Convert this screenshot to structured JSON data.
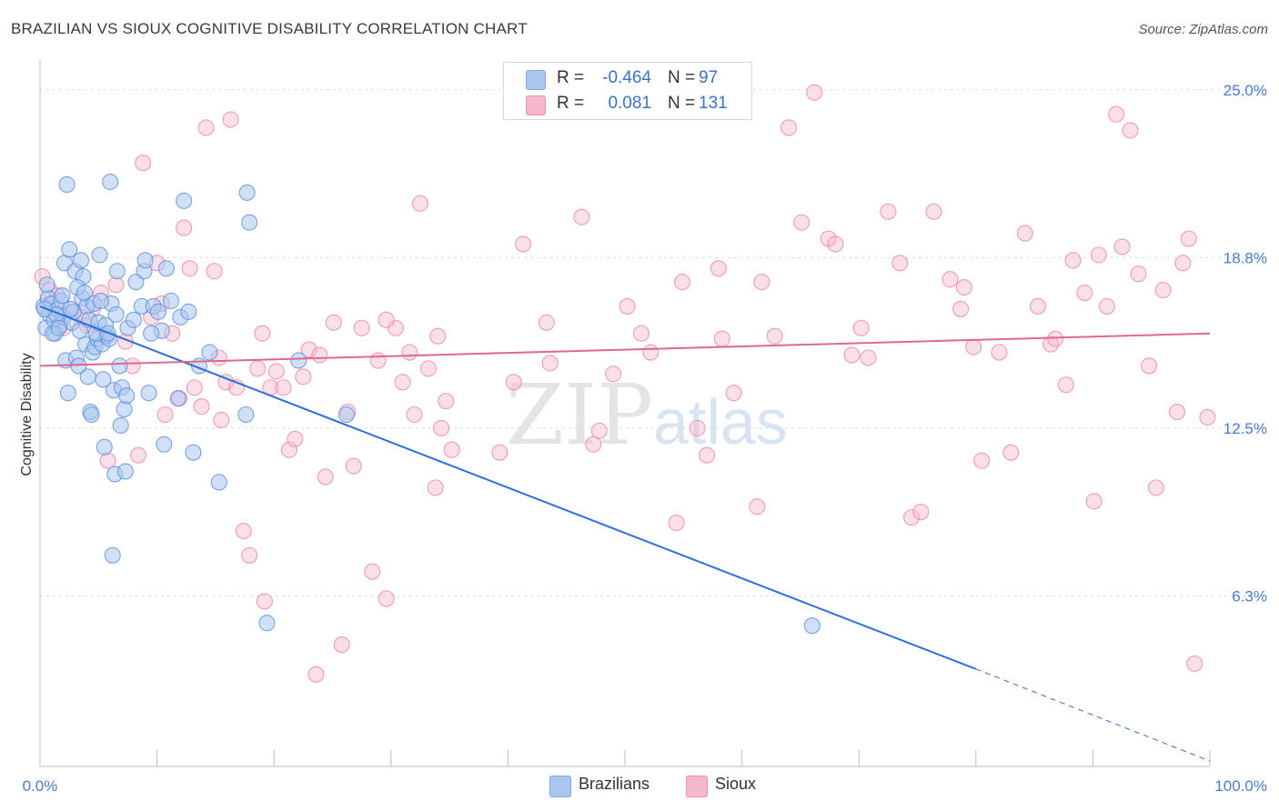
{
  "title": "BRAZILIAN VS SIOUX COGNITIVE DISABILITY CORRELATION CHART",
  "source": "Source: ZipAtlas.com",
  "watermark": {
    "zip": "ZIP",
    "atlas": "atlas"
  },
  "stats": {
    "rows": [
      {
        "r_label": "R =",
        "r_value": "-0.464",
        "n_label": "N =",
        "n_value": "97",
        "color": "#a9c6ef"
      },
      {
        "r_label": "R =",
        "r_value": "0.081",
        "n_label": "N =",
        "n_value": "131",
        "color": "#f6b8cc"
      }
    ]
  },
  "legend": {
    "items": [
      {
        "label": "Brazilians",
        "color": "#a9c6ef"
      },
      {
        "label": "Sioux",
        "color": "#f6b8cc"
      }
    ]
  },
  "chart_data": {
    "type": "scatter",
    "title": "BRAZILIAN VS SIOUX COGNITIVE DISABILITY CORRELATION CHART",
    "xlabel": "",
    "ylabel": "Cognitive Disability",
    "xlim": [
      0,
      100
    ],
    "ylim": [
      0,
      25.9
    ],
    "x_tick_labels": [
      "0.0%",
      "100.0%"
    ],
    "y_ticks": [
      6.3,
      12.5,
      18.8,
      25.0
    ],
    "y_tick_labels": [
      "6.3%",
      "12.5%",
      "18.8%",
      "25.0%"
    ],
    "grid": true,
    "legend_position": "bottom-center",
    "series": [
      {
        "name": "Brazilians",
        "color": "#5b8fdc",
        "fill": "#a9c6ef",
        "trend": {
          "x0": 0,
          "y0": 17.0,
          "x1": 80,
          "y1": 3.6,
          "dashed_to_x": 100,
          "dashed_to_y": 0.2,
          "line_color": "#2f6fd6"
        },
        "points": [
          [
            0.3,
            17.0
          ],
          [
            0.5,
            16.2
          ],
          [
            0.7,
            17.3
          ],
          [
            0.8,
            16.7
          ],
          [
            1.0,
            17.1
          ],
          [
            1.2,
            16.5
          ],
          [
            1.3,
            16.0
          ],
          [
            1.5,
            16.9
          ],
          [
            1.7,
            16.3
          ],
          [
            1.8,
            17.2
          ],
          [
            2.0,
            16.6
          ],
          [
            2.1,
            18.6
          ],
          [
            2.2,
            15.0
          ],
          [
            2.4,
            13.8
          ],
          [
            2.5,
            19.1
          ],
          [
            2.7,
            16.4
          ],
          [
            2.9,
            16.8
          ],
          [
            3.0,
            18.3
          ],
          [
            3.1,
            15.1
          ],
          [
            3.3,
            14.8
          ],
          [
            3.5,
            18.7
          ],
          [
            3.6,
            17.3
          ],
          [
            3.7,
            18.1
          ],
          [
            3.9,
            15.6
          ],
          [
            4.0,
            17.0
          ],
          [
            4.1,
            14.4
          ],
          [
            4.3,
            13.1
          ],
          [
            4.4,
            13.0
          ],
          [
            4.5,
            15.3
          ],
          [
            4.7,
            15.5
          ],
          [
            4.9,
            15.8
          ],
          [
            5.1,
            18.9
          ],
          [
            5.3,
            15.6
          ],
          [
            5.4,
            14.3
          ],
          [
            5.5,
            11.8
          ],
          [
            5.7,
            15.9
          ],
          [
            5.9,
            15.8
          ],
          [
            6.0,
            21.6
          ],
          [
            6.1,
            17.1
          ],
          [
            6.3,
            13.9
          ],
          [
            6.4,
            10.8
          ],
          [
            6.6,
            18.3
          ],
          [
            6.8,
            14.8
          ],
          [
            6.9,
            12.6
          ],
          [
            7.0,
            14.0
          ],
          [
            7.2,
            13.2
          ],
          [
            7.3,
            10.9
          ],
          [
            7.4,
            13.7
          ],
          [
            7.5,
            16.2
          ],
          [
            8.2,
            17.9
          ],
          [
            8.7,
            17.0
          ],
          [
            8.9,
            18.3
          ],
          [
            9.0,
            18.7
          ],
          [
            9.3,
            13.8
          ],
          [
            9.7,
            17.0
          ],
          [
            10.1,
            16.8
          ],
          [
            10.4,
            16.1
          ],
          [
            10.6,
            11.9
          ],
          [
            10.8,
            18.4
          ],
          [
            11.8,
            13.6
          ],
          [
            12.0,
            16.6
          ],
          [
            12.3,
            20.9
          ],
          [
            13.1,
            11.6
          ],
          [
            13.6,
            14.8
          ],
          [
            14.5,
            15.3
          ],
          [
            15.3,
            10.5
          ],
          [
            17.6,
            13.0
          ],
          [
            17.7,
            21.2
          ],
          [
            17.9,
            20.1
          ],
          [
            19.4,
            5.3
          ],
          [
            22.1,
            15.0
          ],
          [
            26.2,
            13.0
          ],
          [
            66.0,
            5.2
          ],
          [
            2.3,
            21.5
          ],
          [
            6.2,
            7.8
          ],
          [
            0.6,
            17.8
          ],
          [
            1.1,
            16.0
          ],
          [
            1.4,
            16.7
          ],
          [
            1.6,
            16.2
          ],
          [
            1.9,
            17.4
          ],
          [
            2.6,
            16.9
          ],
          [
            3.2,
            17.7
          ],
          [
            3.4,
            16.1
          ],
          [
            3.8,
            17.5
          ],
          [
            4.2,
            16.5
          ],
          [
            4.6,
            17.1
          ],
          [
            4.8,
            16.0
          ],
          [
            5.0,
            16.4
          ],
          [
            5.2,
            17.2
          ],
          [
            5.6,
            16.3
          ],
          [
            5.8,
            16.0
          ],
          [
            6.5,
            16.7
          ],
          [
            8.0,
            16.5
          ],
          [
            9.5,
            16.0
          ],
          [
            11.2,
            17.2
          ],
          [
            12.7,
            16.8
          ],
          [
            0.4,
            16.9
          ]
        ]
      },
      {
        "name": "Sioux",
        "color": "#ec87a8",
        "fill": "#f6b8cc",
        "trend": {
          "x0": 0,
          "y0": 14.8,
          "x1": 100,
          "y1": 16.0,
          "line_color": "#e0678f"
        },
        "points": [
          [
            0.2,
            18.1
          ],
          [
            0.8,
            17.6
          ],
          [
            1.5,
            17.4
          ],
          [
            2.0,
            16.2
          ],
          [
            2.8,
            16.8
          ],
          [
            3.5,
            16.6
          ],
          [
            4.0,
            16.3
          ],
          [
            4.5,
            16.9
          ],
          [
            5.2,
            17.5
          ],
          [
            5.8,
            11.3
          ],
          [
            6.5,
            17.8
          ],
          [
            7.3,
            15.7
          ],
          [
            7.9,
            14.8
          ],
          [
            8.4,
            11.5
          ],
          [
            8.8,
            22.3
          ],
          [
            9.5,
            16.6
          ],
          [
            10.0,
            18.6
          ],
          [
            10.4,
            17.1
          ],
          [
            10.7,
            13.0
          ],
          [
            11.3,
            16.0
          ],
          [
            11.9,
            13.6
          ],
          [
            12.3,
            19.9
          ],
          [
            12.8,
            18.4
          ],
          [
            13.2,
            14.0
          ],
          [
            13.8,
            13.3
          ],
          [
            14.2,
            23.6
          ],
          [
            14.9,
            18.3
          ],
          [
            15.5,
            12.8
          ],
          [
            15.9,
            14.2
          ],
          [
            16.3,
            23.9
          ],
          [
            16.8,
            14.0
          ],
          [
            17.4,
            8.7
          ],
          [
            17.9,
            7.8
          ],
          [
            18.6,
            14.7
          ],
          [
            19.2,
            6.1
          ],
          [
            19.7,
            14.0
          ],
          [
            20.2,
            14.6
          ],
          [
            20.8,
            14.0
          ],
          [
            21.3,
            11.7
          ],
          [
            21.8,
            12.1
          ],
          [
            22.5,
            14.4
          ],
          [
            23.0,
            15.4
          ],
          [
            23.6,
            3.4
          ],
          [
            24.4,
            10.7
          ],
          [
            25.1,
            16.4
          ],
          [
            25.8,
            4.5
          ],
          [
            26.3,
            13.1
          ],
          [
            26.8,
            11.1
          ],
          [
            27.5,
            16.2
          ],
          [
            28.4,
            7.2
          ],
          [
            28.9,
            15.0
          ],
          [
            29.6,
            6.2
          ],
          [
            30.4,
            16.2
          ],
          [
            31.0,
            14.2
          ],
          [
            31.6,
            15.3
          ],
          [
            32.0,
            13.0
          ],
          [
            32.5,
            20.8
          ],
          [
            33.2,
            14.7
          ],
          [
            33.8,
            10.3
          ],
          [
            34.3,
            12.5
          ],
          [
            34.7,
            13.5
          ],
          [
            35.2,
            11.7
          ],
          [
            39.3,
            11.6
          ],
          [
            40.5,
            14.2
          ],
          [
            41.3,
            19.3
          ],
          [
            43.6,
            14.9
          ],
          [
            46.3,
            20.3
          ],
          [
            47.3,
            11.9
          ],
          [
            47.8,
            12.4
          ],
          [
            49.0,
            14.5
          ],
          [
            50.2,
            17.0
          ],
          [
            51.4,
            16.0
          ],
          [
            52.2,
            15.3
          ],
          [
            54.4,
            9.0
          ],
          [
            54.9,
            17.9
          ],
          [
            56.2,
            12.5
          ],
          [
            57.0,
            11.5
          ],
          [
            58.3,
            15.8
          ],
          [
            59.3,
            13.8
          ],
          [
            61.3,
            9.6
          ],
          [
            61.7,
            17.9
          ],
          [
            62.8,
            15.9
          ],
          [
            64.0,
            23.6
          ],
          [
            65.1,
            20.1
          ],
          [
            66.2,
            24.9
          ],
          [
            67.4,
            19.5
          ],
          [
            68.0,
            19.3
          ],
          [
            69.4,
            15.2
          ],
          [
            70.2,
            16.2
          ],
          [
            70.8,
            15.1
          ],
          [
            72.5,
            20.5
          ],
          [
            73.5,
            18.6
          ],
          [
            74.5,
            9.2
          ],
          [
            75.3,
            9.4
          ],
          [
            76.4,
            20.5
          ],
          [
            77.8,
            18.0
          ],
          [
            78.7,
            16.9
          ],
          [
            79.0,
            17.7
          ],
          [
            79.8,
            15.5
          ],
          [
            80.5,
            11.3
          ],
          [
            82.0,
            15.3
          ],
          [
            83.0,
            11.6
          ],
          [
            84.2,
            19.7
          ],
          [
            85.3,
            17.0
          ],
          [
            86.4,
            15.6
          ],
          [
            86.8,
            15.8
          ],
          [
            87.7,
            14.1
          ],
          [
            88.3,
            18.7
          ],
          [
            89.3,
            17.5
          ],
          [
            90.1,
            9.8
          ],
          [
            90.5,
            18.9
          ],
          [
            91.2,
            17.0
          ],
          [
            92.0,
            24.1
          ],
          [
            92.5,
            19.2
          ],
          [
            93.2,
            23.5
          ],
          [
            93.9,
            18.2
          ],
          [
            94.8,
            14.8
          ],
          [
            95.4,
            10.3
          ],
          [
            96.0,
            17.6
          ],
          [
            97.2,
            13.1
          ],
          [
            97.7,
            18.6
          ],
          [
            98.2,
            19.5
          ],
          [
            98.7,
            3.8
          ],
          [
            99.8,
            12.9
          ],
          [
            29.6,
            16.5
          ],
          [
            23.9,
            15.2
          ],
          [
            19.0,
            16.0
          ],
          [
            15.3,
            15.1
          ],
          [
            34.0,
            15.9
          ],
          [
            43.3,
            16.4
          ],
          [
            58.0,
            18.4
          ]
        ]
      }
    ]
  }
}
